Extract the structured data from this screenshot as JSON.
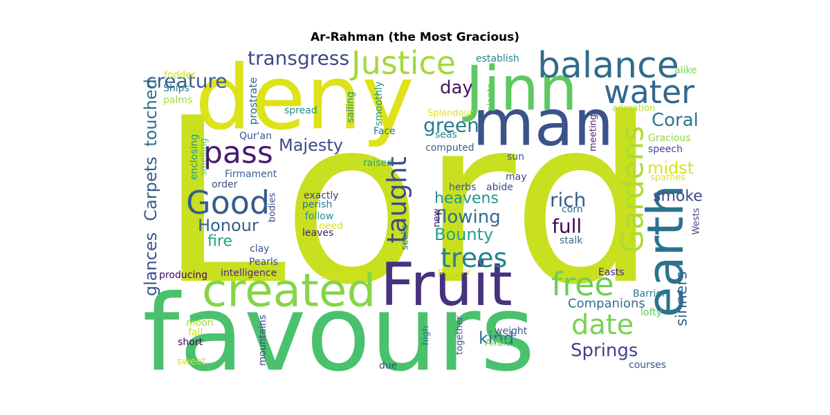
{
  "title": "Ar-Rahman (the Most Gracious)",
  "colors": {
    "background": "#ffffff",
    "title": "#000000",
    "palette": "viridis"
  },
  "words": [
    {
      "text": "Lord",
      "color": "#c8e020"
    },
    {
      "text": "favours",
      "color": "#4ac16d"
    },
    {
      "text": "deny",
      "color": "#dde318"
    },
    {
      "text": "man",
      "color": "#3b528b"
    },
    {
      "text": "Jinn",
      "color": "#5ec962"
    },
    {
      "text": "Fruit",
      "color": "#46327e"
    },
    {
      "text": "earth",
      "color": "#2c728e"
    },
    {
      "text": "created",
      "color": "#86d549"
    },
    {
      "text": "balance",
      "color": "#2f6c8e"
    },
    {
      "text": "Justice",
      "color": "#a2da37"
    },
    {
      "text": "water",
      "color": "#31668e"
    },
    {
      "text": "pass",
      "color": "#481a6c"
    },
    {
      "text": "Good",
      "color": "#365d8d"
    },
    {
      "text": "Gardens",
      "color": "#addc30"
    },
    {
      "text": "free",
      "color": "#6ece58"
    },
    {
      "text": "date",
      "color": "#7ad151"
    },
    {
      "text": "taught",
      "color": "#3e4a89"
    },
    {
      "text": "trees",
      "color": "#26818e"
    },
    {
      "text": "transgress",
      "color": "#3f4889"
    },
    {
      "text": "creature",
      "color": "#365c8d"
    },
    {
      "text": "Coral",
      "color": "#2a788e"
    },
    {
      "text": "Majesty",
      "color": "#3e4989"
    },
    {
      "text": "day",
      "color": "#471365"
    },
    {
      "text": "green",
      "color": "#287c8e"
    },
    {
      "text": "Springs",
      "color": "#414487"
    },
    {
      "text": "Honour",
      "color": "#355f8d"
    },
    {
      "text": "heavens",
      "color": "#1f968b"
    },
    {
      "text": "rich",
      "color": "#355e8d"
    },
    {
      "text": "full",
      "color": "#450559"
    },
    {
      "text": "flowing",
      "color": "#306a8e"
    },
    {
      "text": "Bounty",
      "color": "#20a386"
    },
    {
      "text": "touched",
      "color": "#2e6d8e"
    },
    {
      "text": "Carpets",
      "color": "#365d8d"
    },
    {
      "text": "glances",
      "color": "#3b528b"
    },
    {
      "text": "fire",
      "color": "#1fa088"
    },
    {
      "text": "smoke",
      "color": "#3f4788"
    },
    {
      "text": "midst",
      "color": "#dae319"
    },
    {
      "text": "sinners",
      "color": "#33638d"
    },
    {
      "text": "Companions",
      "color": "#2c718e"
    },
    {
      "text": "kind",
      "color": "#2c718e"
    },
    {
      "text": "prostrate",
      "color": "#31668e"
    },
    {
      "text": "sailing",
      "color": "#21918c"
    },
    {
      "text": "smoothly",
      "color": "#21918c"
    },
    {
      "text": "establish",
      "color": "#25848e"
    },
    {
      "text": "alike",
      "color": "#7ad151"
    },
    {
      "text": "fodder",
      "color": "#cde11d"
    },
    {
      "text": "Ships",
      "color": "#2a788e"
    },
    {
      "text": "palms",
      "color": "#9bd93c"
    },
    {
      "text": "spread",
      "color": "#218f8d"
    },
    {
      "text": "Splendour",
      "color": "#dde318"
    },
    {
      "text": "plants",
      "color": "#5ec962"
    },
    {
      "text": "adoration",
      "color": "#b5de2b"
    },
    {
      "text": "Face",
      "color": "#2d708e"
    },
    {
      "text": "seas",
      "color": "#25858e"
    },
    {
      "text": "computed",
      "color": "#33638d"
    },
    {
      "text": "Qur'an",
      "color": "#3b528b"
    },
    {
      "text": "enclosing",
      "color": "#1f9e89"
    },
    {
      "text": "smelling",
      "color": "#5ec962"
    },
    {
      "text": "Firmament",
      "color": "#33638d"
    },
    {
      "text": "order",
      "color": "#3e4a89"
    },
    {
      "text": "raised",
      "color": "#20a486"
    },
    {
      "text": "sun",
      "color": "#39568c"
    },
    {
      "text": "meeting",
      "color": "#482173"
    },
    {
      "text": "Gracious",
      "color": "#90d743"
    },
    {
      "text": "speech",
      "color": "#404688"
    },
    {
      "text": "spathes",
      "color": "#dde318"
    },
    {
      "text": "may",
      "color": "#3e4a89"
    },
    {
      "text": "herbs",
      "color": "#3b528b"
    },
    {
      "text": "abide",
      "color": "#3e4a89"
    },
    {
      "text": "corn",
      "color": "#31688e"
    },
    {
      "text": "exactly",
      "color": "#453781"
    },
    {
      "text": "perish",
      "color": "#2a778e"
    },
    {
      "text": "follow",
      "color": "#21918c"
    },
    {
      "text": "need",
      "color": "#dae319"
    },
    {
      "text": "leaves",
      "color": "#481a6c"
    },
    {
      "text": "bodies",
      "color": "#3e4989"
    },
    {
      "text": "new",
      "color": "#471063"
    },
    {
      "text": "seeks",
      "color": "#2d708e"
    },
    {
      "text": "Wests",
      "color": "#404688"
    },
    {
      "text": "stalk",
      "color": "#31688e"
    },
    {
      "text": "clay",
      "color": "#3a548c"
    },
    {
      "text": "Pearls",
      "color": "#3e4989"
    },
    {
      "text": "intelligence",
      "color": "#482878"
    },
    {
      "text": "producing",
      "color": "#440154"
    },
    {
      "text": "sounding",
      "color": "#dae319"
    },
    {
      "text": "pottery",
      "color": "#dde318"
    },
    {
      "text": "Easts",
      "color": "#482173"
    },
    {
      "text": "Barrier",
      "color": "#2a788e"
    },
    {
      "text": "lofty",
      "color": "#5ec962"
    },
    {
      "text": "moon",
      "color": "#a5db36"
    },
    {
      "text": "fall",
      "color": "#c8e020"
    },
    {
      "text": "short",
      "color": "#440154"
    },
    {
      "text": "mountains",
      "color": "#3f4788"
    },
    {
      "text": "high",
      "color": "#2a788e"
    },
    {
      "text": "together",
      "color": "#3b528b"
    },
    {
      "text": "weight",
      "color": "#39568c"
    },
    {
      "text": "Allah",
      "color": "#7ad151"
    },
    {
      "text": "sweet",
      "color": "#dde318"
    },
    {
      "text": "due",
      "color": "#3e4a89"
    },
    {
      "text": "courses",
      "color": "#3b528b"
    }
  ]
}
